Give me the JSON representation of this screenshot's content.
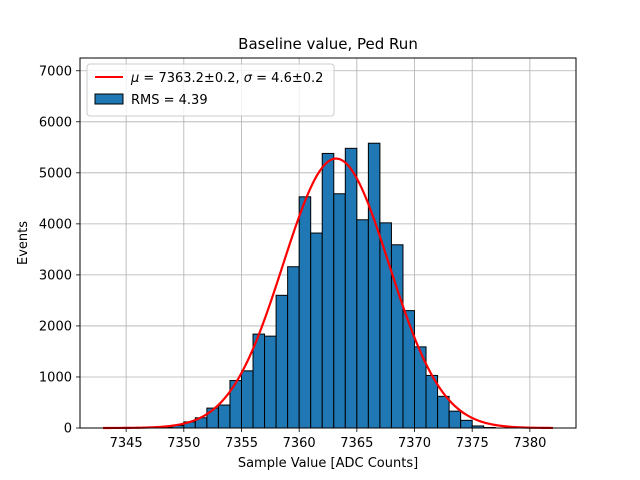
{
  "chart_data": {
    "type": "bar",
    "title": "Baseline value, Ped Run",
    "xlabel": "Sample Value [ADC Counts]",
    "ylabel": "Events",
    "xlim": [
      7341,
      7384
    ],
    "ylim": [
      0,
      7250
    ],
    "xticks": [
      7345,
      7350,
      7355,
      7360,
      7365,
      7370,
      7375,
      7380
    ],
    "yticks": [
      0,
      1000,
      2000,
      3000,
      4000,
      5000,
      6000,
      7000
    ],
    "grid": true,
    "legend_position": "top-left",
    "histogram": {
      "name": "RMS = 4.39",
      "color": "#1f77b4",
      "edgecolor": "#000000",
      "bin_width": 1,
      "bins": [
        {
          "x": 7348.5,
          "count": 10
        },
        {
          "x": 7349.5,
          "count": 50
        },
        {
          "x": 7350.5,
          "count": 120
        },
        {
          "x": 7351.5,
          "count": 200
        },
        {
          "x": 7352.5,
          "count": 390
        },
        {
          "x": 7353.5,
          "count": 450
        },
        {
          "x": 7354.5,
          "count": 930
        },
        {
          "x": 7355.5,
          "count": 1120
        },
        {
          "x": 7356.5,
          "count": 1840
        },
        {
          "x": 7357.5,
          "count": 1800
        },
        {
          "x": 7358.5,
          "count": 2600
        },
        {
          "x": 7359.5,
          "count": 3160
        },
        {
          "x": 7360.5,
          "count": 4530
        },
        {
          "x": 7361.5,
          "count": 3820
        },
        {
          "x": 7362.5,
          "count": 5380
        },
        {
          "x": 7363.5,
          "count": 4590
        },
        {
          "x": 7364.5,
          "count": 5480
        },
        {
          "x": 7365.5,
          "count": 4080
        },
        {
          "x": 7366.5,
          "count": 5580
        },
        {
          "x": 7367.5,
          "count": 4020
        },
        {
          "x": 7368.5,
          "count": 3590
        },
        {
          "x": 7369.5,
          "count": 2300
        },
        {
          "x": 7370.5,
          "count": 1590
        },
        {
          "x": 7371.5,
          "count": 1030
        },
        {
          "x": 7372.5,
          "count": 620
        },
        {
          "x": 7373.5,
          "count": 330
        },
        {
          "x": 7374.5,
          "count": 150
        },
        {
          "x": 7375.5,
          "count": 40
        },
        {
          "x": 7376.5,
          "count": 10
        }
      ]
    },
    "fit": {
      "type": "gaussian",
      "color": "#ff0000",
      "mu": 7363.2,
      "sigma": 4.6,
      "amplitude": 5280,
      "x_range": [
        7343,
        7382
      ],
      "label_math_mu": "μ",
      "label_mu_value": " = 7363.2±0.2, ",
      "label_math_sigma": "σ",
      "label_sigma_value": " = 4.6±0.2"
    },
    "legend": {
      "fit_label": "μ = 7363.2±0.2, σ = 4.6±0.2",
      "hist_label": "RMS = 4.39"
    }
  }
}
